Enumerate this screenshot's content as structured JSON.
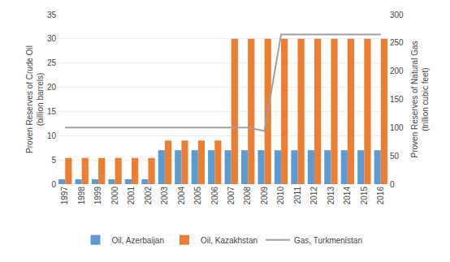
{
  "chart_data": {
    "type": "bar",
    "categories": [
      1997,
      1998,
      1999,
      2000,
      2001,
      2002,
      2003,
      2004,
      2005,
      2006,
      2007,
      2008,
      2009,
      2010,
      2011,
      2012,
      2013,
      2014,
      2015,
      2016
    ],
    "series": [
      {
        "name": "Oil, Azerbaijan",
        "color": "#5b9bd5",
        "values": [
          1.0,
          1.0,
          1.0,
          1.0,
          1.0,
          1.0,
          7.0,
          7.0,
          7.0,
          7.0,
          7.0,
          7.0,
          7.0,
          7.0,
          7.0,
          7.0,
          7.0,
          7.0,
          7.0,
          7.0
        ]
      },
      {
        "name": "Oil, Kazakhstan",
        "color": "#ed7d31",
        "values": [
          5.4,
          5.4,
          5.4,
          5.4,
          5.4,
          5.4,
          9.0,
          9.0,
          9.0,
          9.0,
          30.0,
          30.0,
          30.0,
          30.0,
          30.0,
          30.0,
          30.0,
          30.0,
          30.0,
          30.0
        ]
      },
      {
        "name": "Gas, Turkmenistan",
        "color": "#a0a0a0",
        "type": "line",
        "axis": "y2",
        "values": [
          100,
          100,
          100,
          100,
          100,
          100,
          100,
          100,
          100,
          100,
          100,
          100,
          94,
          265,
          265,
          265,
          265,
          265,
          265,
          265
        ]
      }
    ],
    "ylabel": "Proven Reserves of Crude Oil\n(billion barrels)",
    "y2label": "Proven Reserves of Natural Gas\n(trillion cubic feet)",
    "ylim": [
      0,
      35
    ],
    "yticks": [
      0,
      5,
      10,
      15,
      20,
      25,
      30,
      35
    ],
    "y2lim": [
      0,
      300
    ],
    "y2ticks": [
      0,
      50,
      100,
      150,
      200,
      250,
      300
    ],
    "grid": true,
    "legend": "bottom"
  }
}
